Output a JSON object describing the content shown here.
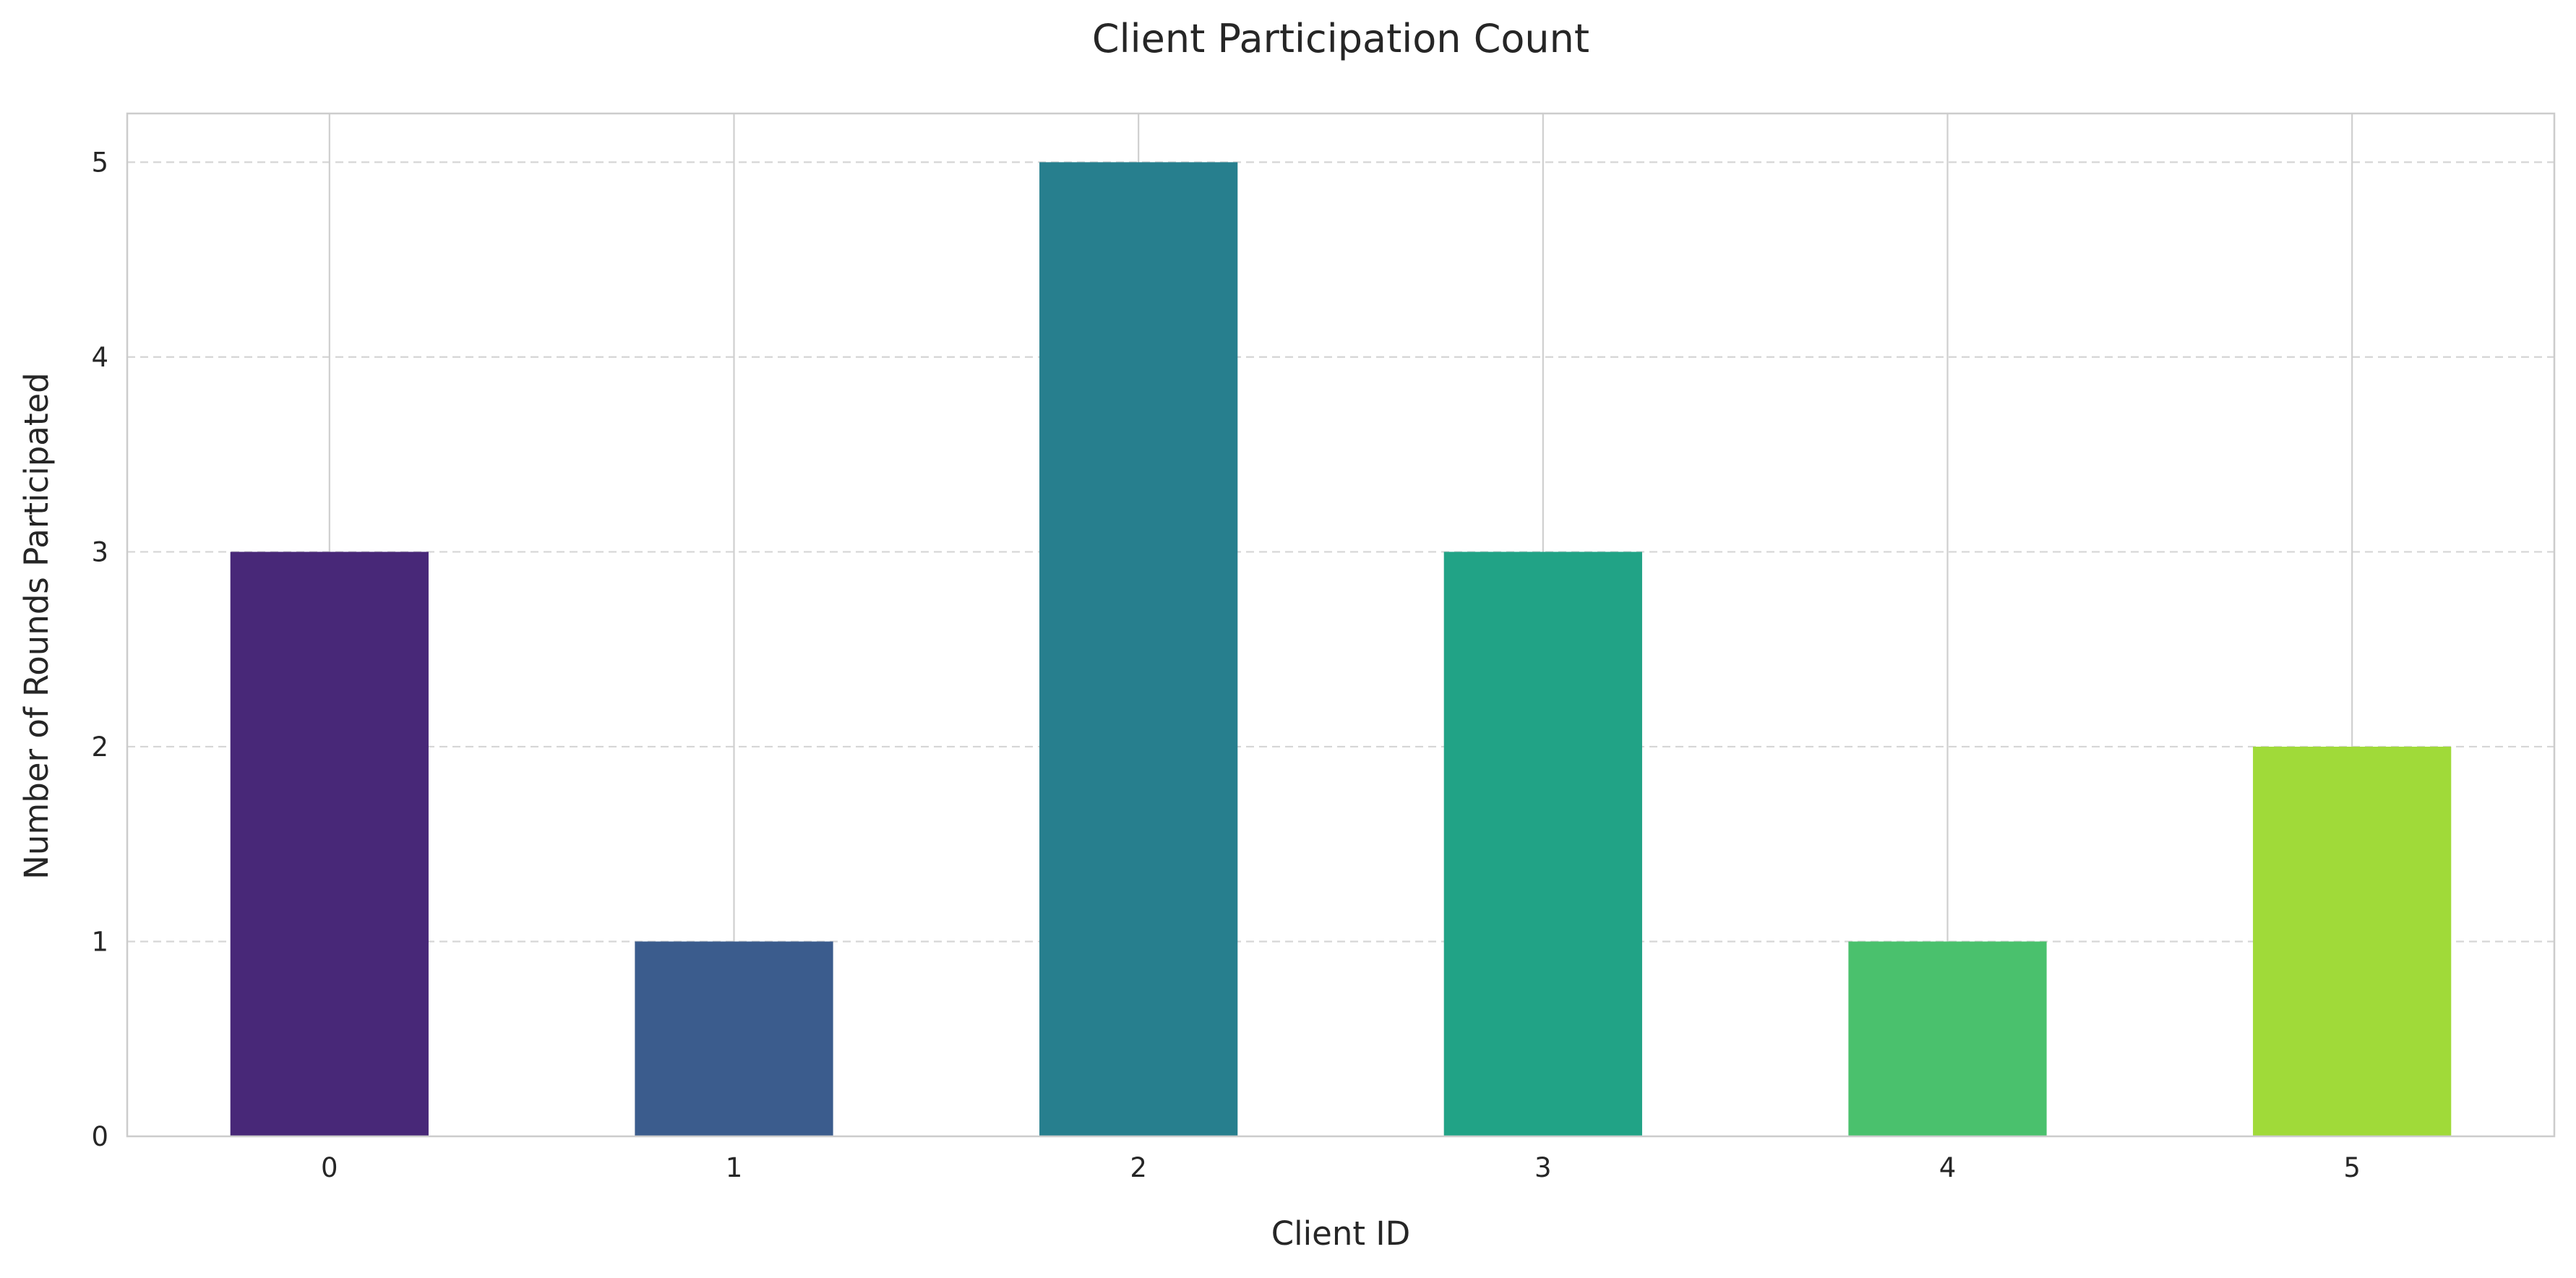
{
  "chart_data": {
    "type": "bar",
    "title": "Client Participation Count",
    "xlabel": "Client ID",
    "ylabel": "Number of Rounds Participated",
    "categories": [
      "0",
      "1",
      "2",
      "3",
      "4",
      "5"
    ],
    "values": [
      3,
      1,
      5,
      3,
      1,
      2
    ],
    "colors": [
      "#482878",
      "#3b5c8d",
      "#277f8e",
      "#21a386",
      "#4ac16d",
      "#a0da39"
    ],
    "yticks": [
      "0",
      "1",
      "2",
      "3",
      "4",
      "5"
    ],
    "ylim": [
      0,
      5.25
    ],
    "grid": {
      "horizontal": "dashed",
      "vertical": "solid"
    },
    "legend": "none"
  }
}
